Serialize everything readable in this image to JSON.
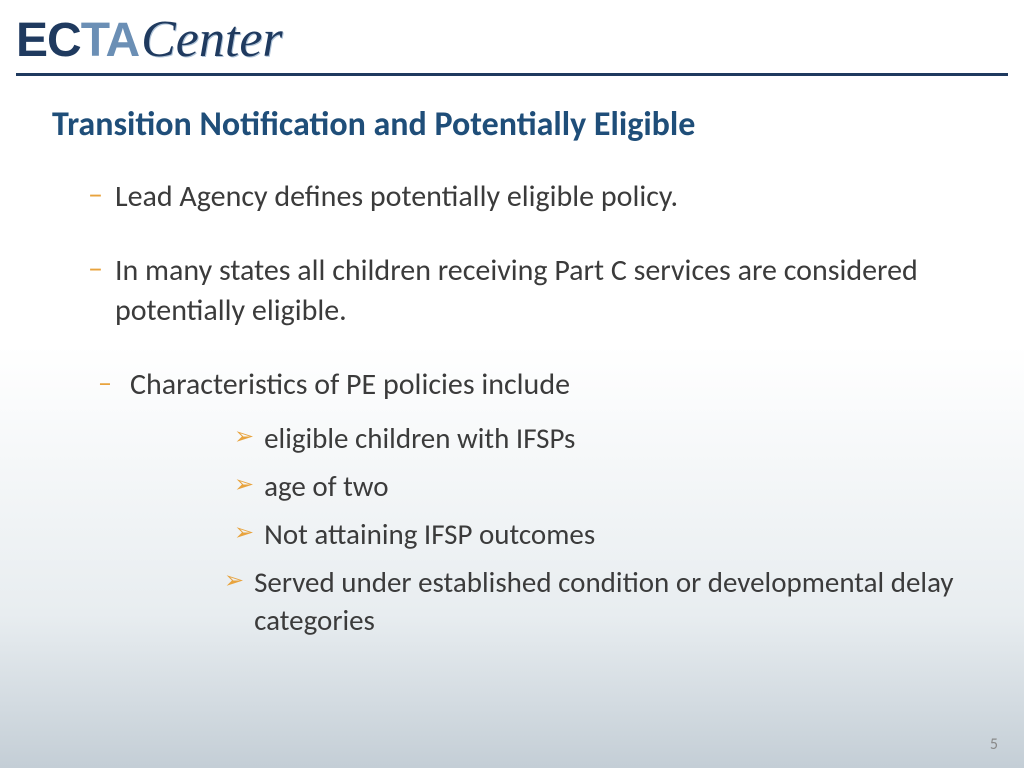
{
  "logo": {
    "part1": "EC",
    "part2": "TA",
    "part3": "Center"
  },
  "title": "Transition Notification and Potentially Eligible",
  "bullets": [
    "Lead Agency defines potentially eligible policy.",
    "In many states all children receiving Part C services are considered  potentially eligible."
  ],
  "pe_intro": "Characteristics of PE policies include",
  "pe_items": [
    "eligible children with IFSPs",
    "age of two",
    "Not attaining IFSP outcomes",
    "Served under established condition or developmental delay categories"
  ],
  "page_number": "5",
  "colors": {
    "title": "#1f4e79",
    "body_text": "#3b3b3b",
    "accent_bullet": "#e8a33d",
    "logo_dark": "#1f3a5f",
    "logo_light": "#6b8fb5",
    "rule": "#1f3a5f",
    "page_num": "#8a8a8a",
    "bg_gradient_top": "#ffffff",
    "bg_gradient_bottom": "#c4ced6"
  },
  "typography": {
    "title_fontsize": 34,
    "body_fontsize": 30,
    "sub_fontsize": 29,
    "pagenum_fontsize": 16,
    "logo_fontsize": 48
  }
}
